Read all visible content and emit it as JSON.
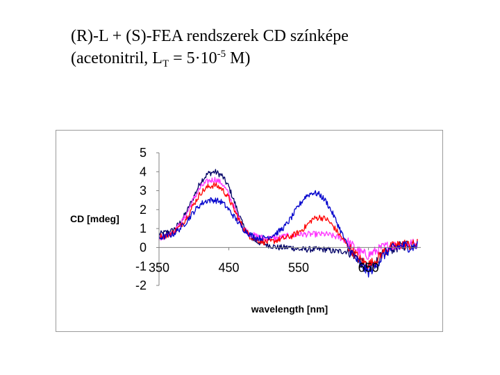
{
  "slide": {
    "title_line1": "(R)-L + (S)-FEA rendszerek CD színképe",
    "title_line2_prefix": "(acetonitril, L",
    "title_line2_sub": "T",
    "title_line2_mid": " = 5·10",
    "title_line2_sup": "-5",
    "title_line2_suffix": " M)"
  },
  "chart_data": {
    "type": "line",
    "title": "",
    "xlabel": "wavelength [nm]",
    "ylabel": "CD [mdeg]",
    "xlim": [
      350,
      725
    ],
    "ylim": [
      -2,
      5
    ],
    "x_ticks": [
      350,
      450,
      550,
      650
    ],
    "x_tick_labels": [
      "350",
      "450",
      "550",
      "650"
    ],
    "y_ticks": [
      5,
      4,
      3,
      2,
      1,
      0,
      -1,
      -2
    ],
    "y_tick_labels": [
      "5",
      "4",
      "3",
      "2",
      "1",
      "0",
      "-1",
      "-2"
    ],
    "x_tick_label_position": "at y = 0",
    "grid": false,
    "legend": "none",
    "colors": {
      "frame": "#9a9a9a",
      "axis": "#808080"
    },
    "series": [
      {
        "color": "#000066",
        "points": [
          [
            350,
            0.7
          ],
          [
            360,
            0.8
          ],
          [
            370,
            0.9
          ],
          [
            380,
            1.3
          ],
          [
            390,
            1.9
          ],
          [
            400,
            2.7
          ],
          [
            410,
            3.5
          ],
          [
            420,
            3.9
          ],
          [
            430,
            4.0
          ],
          [
            440,
            3.8
          ],
          [
            450,
            3.2
          ],
          [
            460,
            2.2
          ],
          [
            470,
            1.2
          ],
          [
            480,
            0.6
          ],
          [
            490,
            0.3
          ],
          [
            500,
            0.2
          ],
          [
            510,
            0.1
          ],
          [
            520,
            0.0
          ],
          [
            530,
            0.0
          ],
          [
            540,
            0.0
          ],
          [
            550,
            -0.1
          ],
          [
            560,
            -0.1
          ],
          [
            570,
            -0.1
          ],
          [
            580,
            -0.1
          ],
          [
            590,
            -0.1
          ],
          [
            600,
            -0.2
          ],
          [
            610,
            -0.2
          ],
          [
            620,
            -0.2
          ],
          [
            630,
            -0.4
          ],
          [
            640,
            -0.8
          ],
          [
            650,
            -1.1
          ],
          [
            660,
            -0.8
          ],
          [
            670,
            -0.4
          ],
          [
            680,
            -0.1
          ],
          [
            690,
            0.0
          ],
          [
            700,
            0.1
          ],
          [
            710,
            0.2
          ],
          [
            720,
            0.2
          ]
        ]
      },
      {
        "color": "#ff33ff",
        "points": [
          [
            350,
            0.5
          ],
          [
            360,
            0.6
          ],
          [
            370,
            0.8
          ],
          [
            380,
            1.2
          ],
          [
            390,
            1.8
          ],
          [
            400,
            2.6
          ],
          [
            410,
            3.2
          ],
          [
            420,
            3.5
          ],
          [
            430,
            3.6
          ],
          [
            440,
            3.4
          ],
          [
            450,
            2.8
          ],
          [
            460,
            1.9
          ],
          [
            470,
            1.1
          ],
          [
            480,
            0.7
          ],
          [
            490,
            0.6
          ],
          [
            500,
            0.5
          ],
          [
            510,
            0.5
          ],
          [
            520,
            0.5
          ],
          [
            530,
            0.6
          ],
          [
            540,
            0.6
          ],
          [
            550,
            0.7
          ],
          [
            560,
            0.7
          ],
          [
            570,
            0.7
          ],
          [
            580,
            0.7
          ],
          [
            590,
            0.7
          ],
          [
            600,
            0.6
          ],
          [
            610,
            0.5
          ],
          [
            620,
            0.3
          ],
          [
            630,
            0.0
          ],
          [
            640,
            -0.3
          ],
          [
            650,
            -0.4
          ],
          [
            660,
            -0.2
          ],
          [
            670,
            0.0
          ],
          [
            680,
            0.1
          ],
          [
            690,
            0.1
          ],
          [
            700,
            0.2
          ],
          [
            710,
            0.2
          ],
          [
            720,
            0.2
          ]
        ]
      },
      {
        "color": "#ff0000",
        "points": [
          [
            350,
            0.6
          ],
          [
            360,
            0.6
          ],
          [
            370,
            0.8
          ],
          [
            380,
            1.1
          ],
          [
            390,
            1.6
          ],
          [
            400,
            2.3
          ],
          [
            410,
            2.9
          ],
          [
            420,
            3.2
          ],
          [
            430,
            3.3
          ],
          [
            440,
            3.1
          ],
          [
            450,
            2.6
          ],
          [
            460,
            1.8
          ],
          [
            470,
            1.1
          ],
          [
            480,
            0.6
          ],
          [
            490,
            0.4
          ],
          [
            500,
            0.3
          ],
          [
            510,
            0.3
          ],
          [
            520,
            0.4
          ],
          [
            530,
            0.5
          ],
          [
            540,
            0.6
          ],
          [
            550,
            0.8
          ],
          [
            560,
            1.1
          ],
          [
            570,
            1.5
          ],
          [
            580,
            1.6
          ],
          [
            590,
            1.5
          ],
          [
            600,
            1.1
          ],
          [
            610,
            0.6
          ],
          [
            620,
            0.1
          ],
          [
            630,
            -0.3
          ],
          [
            640,
            -0.7
          ],
          [
            650,
            -0.9
          ],
          [
            660,
            -0.7
          ],
          [
            670,
            -0.3
          ],
          [
            680,
            0.0
          ],
          [
            690,
            0.1
          ],
          [
            700,
            0.2
          ],
          [
            710,
            0.1
          ],
          [
            720,
            0.2
          ]
        ]
      },
      {
        "color": "#0000cc",
        "points": [
          [
            350,
            0.5
          ],
          [
            360,
            0.6
          ],
          [
            370,
            0.7
          ],
          [
            380,
            1.0
          ],
          [
            390,
            1.4
          ],
          [
            400,
            1.9
          ],
          [
            410,
            2.3
          ],
          [
            420,
            2.5
          ],
          [
            430,
            2.5
          ],
          [
            440,
            2.4
          ],
          [
            450,
            2.0
          ],
          [
            460,
            1.5
          ],
          [
            470,
            1.0
          ],
          [
            480,
            0.7
          ],
          [
            490,
            0.5
          ],
          [
            500,
            0.5
          ],
          [
            510,
            0.6
          ],
          [
            520,
            0.8
          ],
          [
            530,
            1.1
          ],
          [
            540,
            1.6
          ],
          [
            550,
            2.2
          ],
          [
            560,
            2.7
          ],
          [
            570,
            2.9
          ],
          [
            580,
            2.8
          ],
          [
            590,
            2.4
          ],
          [
            600,
            1.7
          ],
          [
            610,
            0.9
          ],
          [
            620,
            0.1
          ],
          [
            630,
            -0.5
          ],
          [
            640,
            -1.0
          ],
          [
            650,
            -1.3
          ],
          [
            660,
            -1.0
          ],
          [
            670,
            -0.5
          ],
          [
            680,
            -0.1
          ],
          [
            690,
            0.0
          ],
          [
            700,
            0.1
          ],
          [
            710,
            0.0
          ],
          [
            720,
            0.1
          ]
        ]
      }
    ]
  }
}
